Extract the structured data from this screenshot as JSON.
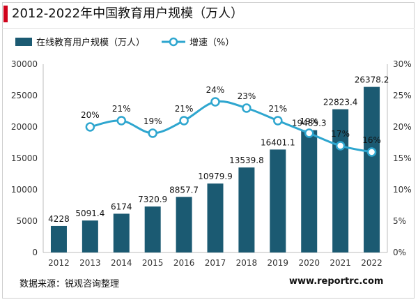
{
  "title": "2012-2022年中国教育用户规模（万人）",
  "source": "数据来源：锐观咨询整理",
  "brand": "www.reportrc.com",
  "colors": {
    "accent": "#d0021b",
    "bar": "#1b5a72",
    "line": "#2ea6cf"
  },
  "chart_data": {
    "type": "bar",
    "categories": [
      "2012",
      "2013",
      "2014",
      "2015",
      "2016",
      "2017",
      "2018",
      "2019",
      "2020",
      "2021",
      "2022"
    ],
    "series": [
      {
        "name": "在线教育用户规模（万人）",
        "type": "bar",
        "axis": "left",
        "values": [
          4228,
          5091.4,
          6174,
          7320.9,
          8857.7,
          10979.9,
          13539.8,
          16401.1,
          19485.3,
          22823.4,
          26378.2
        ],
        "labels": [
          "4228",
          "5091.4",
          "6174",
          "7320.9",
          "8857.7",
          "10979.9",
          "13539.8",
          "16401.1",
          "19485.3",
          "22823.4",
          "26378.2"
        ]
      },
      {
        "name": "增速（%）",
        "type": "line",
        "axis": "right",
        "values": [
          20,
          21,
          19,
          21,
          24,
          23,
          21,
          19,
          17,
          16
        ],
        "x": [
          "2013",
          "2014",
          "2015",
          "2016",
          "2017",
          "2018",
          "2019",
          "2020",
          "2021",
          "2022"
        ],
        "labels": [
          "20%",
          "21%",
          "19%",
          "21%",
          "24%",
          "23%",
          "21%",
          "19%",
          "17%",
          "16%"
        ]
      }
    ],
    "y_left": {
      "min": 0,
      "max": 30000,
      "ticks": [
        "0",
        "5000",
        "10000",
        "15000",
        "20000",
        "25000",
        "30000"
      ]
    },
    "y_right": {
      "min": 0,
      "max": 30,
      "ticks": [
        "0%",
        "5%",
        "10%",
        "15%",
        "20%",
        "25%",
        "30%"
      ]
    },
    "grid": false,
    "legend": "top-left"
  }
}
